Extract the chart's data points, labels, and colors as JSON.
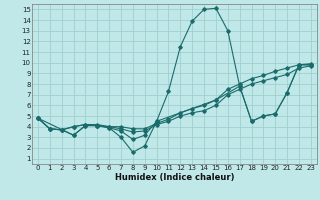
{
  "xlabel": "Humidex (Indice chaleur)",
  "background_color": "#c0e8e8",
  "grid_color": "#a0d0d0",
  "line_color": "#1a6b6b",
  "xlim": [
    -0.5,
    23.5
  ],
  "ylim": [
    0.5,
    15.5
  ],
  "xticks": [
    0,
    1,
    2,
    3,
    4,
    5,
    6,
    7,
    8,
    9,
    10,
    11,
    12,
    13,
    14,
    15,
    16,
    17,
    18,
    19,
    20,
    21,
    22,
    23
  ],
  "yticks": [
    1,
    2,
    3,
    4,
    5,
    6,
    7,
    8,
    9,
    10,
    11,
    12,
    13,
    14,
    15
  ],
  "lines": [
    {
      "x": [
        0,
        1,
        2,
        3,
        4,
        5,
        6,
        7,
        8,
        9,
        10,
        11,
        12,
        13,
        14,
        15,
        16,
        17,
        18,
        19,
        20,
        21,
        22,
        23
      ],
      "y": [
        4.8,
        3.8,
        3.7,
        3.2,
        4.1,
        4.1,
        3.9,
        3.0,
        1.6,
        2.2,
        4.5,
        7.3,
        11.5,
        13.9,
        15.0,
        15.1,
        13.0,
        7.8,
        4.5,
        5.0,
        5.2,
        7.2,
        9.8,
        9.8
      ]
    },
    {
      "x": [
        0,
        1,
        2,
        3,
        4,
        5,
        6,
        7,
        8,
        9,
        10,
        11,
        12,
        13,
        14,
        15,
        16,
        17,
        18,
        19,
        20,
        21,
        22,
        23
      ],
      "y": [
        4.8,
        3.8,
        3.7,
        4.0,
        4.2,
        4.2,
        4.0,
        4.0,
        3.8,
        3.8,
        4.3,
        4.7,
        5.3,
        5.7,
        6.0,
        6.5,
        7.5,
        8.0,
        8.5,
        8.8,
        9.2,
        9.5,
        9.8,
        9.9
      ]
    },
    {
      "x": [
        0,
        1,
        2,
        3,
        4,
        5,
        6,
        7,
        8,
        9,
        10,
        11,
        12,
        13,
        14,
        15,
        16,
        17,
        18,
        19,
        20,
        21,
        22,
        23
      ],
      "y": [
        4.8,
        3.8,
        3.7,
        4.0,
        4.2,
        4.1,
        4.0,
        3.8,
        3.5,
        3.6,
        4.2,
        4.5,
        5.0,
        5.3,
        5.5,
        6.0,
        7.0,
        7.5,
        8.0,
        8.3,
        8.6,
        8.9,
        9.5,
        9.7
      ]
    },
    {
      "x": [
        0,
        3,
        4,
        5,
        6,
        7,
        8,
        9,
        10,
        15,
        17,
        18,
        19,
        20,
        21,
        22,
        23
      ],
      "y": [
        4.8,
        3.2,
        4.1,
        4.1,
        3.9,
        3.6,
        2.8,
        3.2,
        4.5,
        6.5,
        7.8,
        4.5,
        5.0,
        5.2,
        7.2,
        9.8,
        9.8
      ]
    }
  ]
}
